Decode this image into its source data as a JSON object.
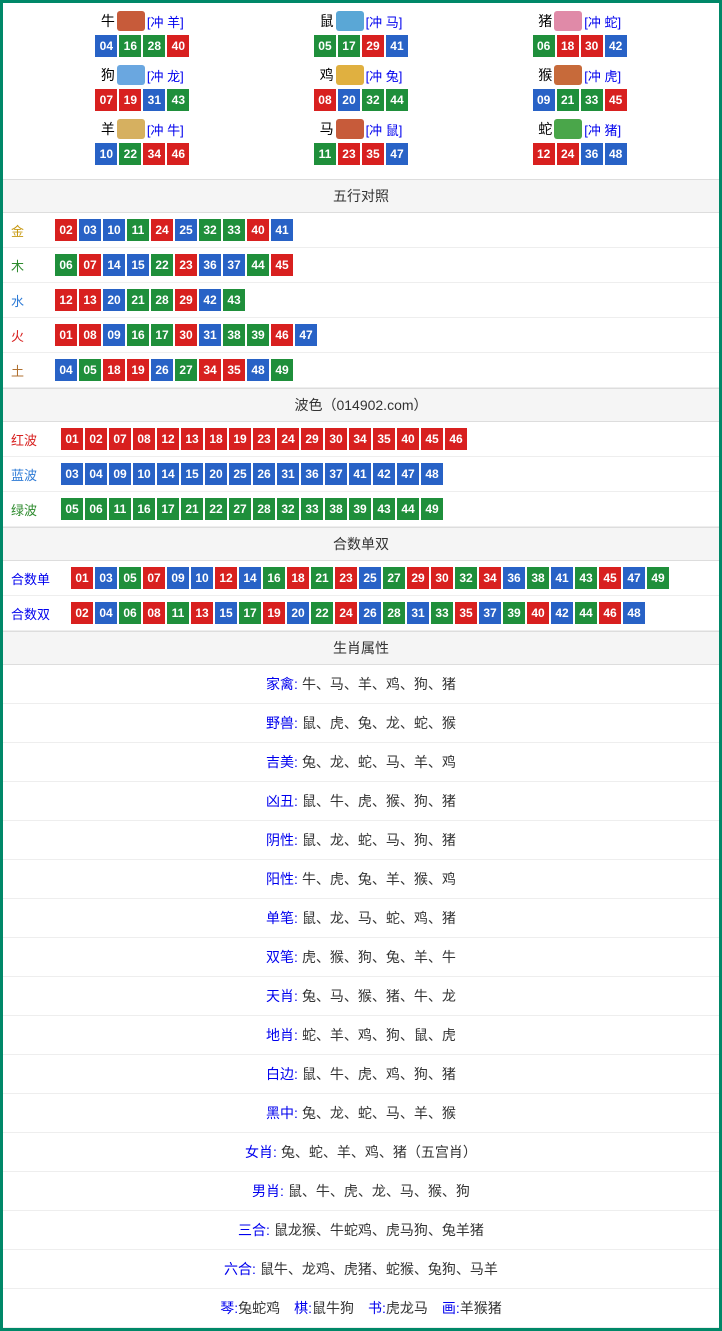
{
  "colors": {
    "frame": "#008868",
    "ball_red": "#d8201f",
    "ball_blue": "#2862c6",
    "ball_green": "#1f8f3b",
    "header_bg": "#f5f5f5",
    "border": "#dddddd",
    "row_border": "#eeeeee",
    "link": "#0000ee",
    "label_gold": "#c79810",
    "label_green": "#2e8b2e",
    "label_blue": "#2e7bd6",
    "label_red": "#d8201f",
    "label_brown": "#b07030"
  },
  "zodiac_icon_colors": {
    "牛": "#c75b3a",
    "鼠": "#5aa7d6",
    "猪": "#e08aa8",
    "狗": "#6aa7e0",
    "鸡": "#e0b040",
    "猴": "#c76a3a",
    "羊": "#d6b060",
    "马": "#c75b3a",
    "蛇": "#4aa64a"
  },
  "zodiac": [
    {
      "name": "牛",
      "clash": "[冲 羊]",
      "balls": [
        [
          "04",
          "b"
        ],
        [
          "16",
          "g"
        ],
        [
          "28",
          "g"
        ],
        [
          "40",
          "r"
        ]
      ]
    },
    {
      "name": "鼠",
      "clash": "[冲 马]",
      "balls": [
        [
          "05",
          "g"
        ],
        [
          "17",
          "g"
        ],
        [
          "29",
          "r"
        ],
        [
          "41",
          "b"
        ]
      ]
    },
    {
      "name": "猪",
      "clash": "[冲 蛇]",
      "balls": [
        [
          "06",
          "g"
        ],
        [
          "18",
          "r"
        ],
        [
          "30",
          "r"
        ],
        [
          "42",
          "b"
        ]
      ]
    },
    {
      "name": "狗",
      "clash": "[冲 龙]",
      "balls": [
        [
          "07",
          "r"
        ],
        [
          "19",
          "r"
        ],
        [
          "31",
          "b"
        ],
        [
          "43",
          "g"
        ]
      ]
    },
    {
      "name": "鸡",
      "clash": "[冲 兔]",
      "balls": [
        [
          "08",
          "r"
        ],
        [
          "20",
          "b"
        ],
        [
          "32",
          "g"
        ],
        [
          "44",
          "g"
        ]
      ]
    },
    {
      "name": "猴",
      "clash": "[冲 虎]",
      "balls": [
        [
          "09",
          "b"
        ],
        [
          "21",
          "g"
        ],
        [
          "33",
          "g"
        ],
        [
          "45",
          "r"
        ]
      ]
    },
    {
      "name": "羊",
      "clash": "[冲 牛]",
      "balls": [
        [
          "10",
          "b"
        ],
        [
          "22",
          "g"
        ],
        [
          "34",
          "r"
        ],
        [
          "46",
          "r"
        ]
      ]
    },
    {
      "name": "马",
      "clash": "[冲 鼠]",
      "balls": [
        [
          "11",
          "g"
        ],
        [
          "23",
          "r"
        ],
        [
          "35",
          "r"
        ],
        [
          "47",
          "b"
        ]
      ]
    },
    {
      "name": "蛇",
      "clash": "[冲 猪]",
      "balls": [
        [
          "12",
          "r"
        ],
        [
          "24",
          "r"
        ],
        [
          "36",
          "b"
        ],
        [
          "48",
          "b"
        ]
      ]
    }
  ],
  "five_elements": {
    "title": "五行对照",
    "rows": [
      {
        "label": "金",
        "label_color": "#c79810",
        "balls": [
          [
            "02",
            "r"
          ],
          [
            "03",
            "b"
          ],
          [
            "10",
            "b"
          ],
          [
            "11",
            "g"
          ],
          [
            "24",
            "r"
          ],
          [
            "25",
            "b"
          ],
          [
            "32",
            "g"
          ],
          [
            "33",
            "g"
          ],
          [
            "40",
            "r"
          ],
          [
            "41",
            "b"
          ]
        ]
      },
      {
        "label": "木",
        "label_color": "#2e8b2e",
        "balls": [
          [
            "06",
            "g"
          ],
          [
            "07",
            "r"
          ],
          [
            "14",
            "b"
          ],
          [
            "15",
            "b"
          ],
          [
            "22",
            "g"
          ],
          [
            "23",
            "r"
          ],
          [
            "36",
            "b"
          ],
          [
            "37",
            "b"
          ],
          [
            "44",
            "g"
          ],
          [
            "45",
            "r"
          ]
        ]
      },
      {
        "label": "水",
        "label_color": "#2e7bd6",
        "balls": [
          [
            "12",
            "r"
          ],
          [
            "13",
            "r"
          ],
          [
            "20",
            "b"
          ],
          [
            "21",
            "g"
          ],
          [
            "28",
            "g"
          ],
          [
            "29",
            "r"
          ],
          [
            "42",
            "b"
          ],
          [
            "43",
            "g"
          ]
        ]
      },
      {
        "label": "火",
        "label_color": "#d8201f",
        "balls": [
          [
            "01",
            "r"
          ],
          [
            "08",
            "r"
          ],
          [
            "09",
            "b"
          ],
          [
            "16",
            "g"
          ],
          [
            "17",
            "g"
          ],
          [
            "30",
            "r"
          ],
          [
            "31",
            "b"
          ],
          [
            "38",
            "g"
          ],
          [
            "39",
            "g"
          ],
          [
            "46",
            "r"
          ],
          [
            "47",
            "b"
          ]
        ]
      },
      {
        "label": "土",
        "label_color": "#b07030",
        "balls": [
          [
            "04",
            "b"
          ],
          [
            "05",
            "g"
          ],
          [
            "18",
            "r"
          ],
          [
            "19",
            "r"
          ],
          [
            "26",
            "b"
          ],
          [
            "27",
            "g"
          ],
          [
            "34",
            "r"
          ],
          [
            "35",
            "r"
          ],
          [
            "48",
            "b"
          ],
          [
            "49",
            "g"
          ]
        ]
      }
    ]
  },
  "wave": {
    "title": "波色（014902.com）",
    "rows": [
      {
        "label": "红波",
        "label_color": "#d8201f",
        "balls": [
          [
            "01",
            "r"
          ],
          [
            "02",
            "r"
          ],
          [
            "07",
            "r"
          ],
          [
            "08",
            "r"
          ],
          [
            "12",
            "r"
          ],
          [
            "13",
            "r"
          ],
          [
            "18",
            "r"
          ],
          [
            "19",
            "r"
          ],
          [
            "23",
            "r"
          ],
          [
            "24",
            "r"
          ],
          [
            "29",
            "r"
          ],
          [
            "30",
            "r"
          ],
          [
            "34",
            "r"
          ],
          [
            "35",
            "r"
          ],
          [
            "40",
            "r"
          ],
          [
            "45",
            "r"
          ],
          [
            "46",
            "r"
          ]
        ]
      },
      {
        "label": "蓝波",
        "label_color": "#2e7bd6",
        "balls": [
          [
            "03",
            "b"
          ],
          [
            "04",
            "b"
          ],
          [
            "09",
            "b"
          ],
          [
            "10",
            "b"
          ],
          [
            "14",
            "b"
          ],
          [
            "15",
            "b"
          ],
          [
            "20",
            "b"
          ],
          [
            "25",
            "b"
          ],
          [
            "26",
            "b"
          ],
          [
            "31",
            "b"
          ],
          [
            "36",
            "b"
          ],
          [
            "37",
            "b"
          ],
          [
            "41",
            "b"
          ],
          [
            "42",
            "b"
          ],
          [
            "47",
            "b"
          ],
          [
            "48",
            "b"
          ]
        ]
      },
      {
        "label": "绿波",
        "label_color": "#2e8b2e",
        "balls": [
          [
            "05",
            "g"
          ],
          [
            "06",
            "g"
          ],
          [
            "11",
            "g"
          ],
          [
            "16",
            "g"
          ],
          [
            "17",
            "g"
          ],
          [
            "21",
            "g"
          ],
          [
            "22",
            "g"
          ],
          [
            "27",
            "g"
          ],
          [
            "28",
            "g"
          ],
          [
            "32",
            "g"
          ],
          [
            "33",
            "g"
          ],
          [
            "38",
            "g"
          ],
          [
            "39",
            "g"
          ],
          [
            "43",
            "g"
          ],
          [
            "44",
            "g"
          ],
          [
            "49",
            "g"
          ]
        ]
      }
    ]
  },
  "sum_parity": {
    "title": "合数单双",
    "rows": [
      {
        "label": "合数单",
        "label_color": "#0000ee",
        "balls": [
          [
            "01",
            "r"
          ],
          [
            "03",
            "b"
          ],
          [
            "05",
            "g"
          ],
          [
            "07",
            "r"
          ],
          [
            "09",
            "b"
          ],
          [
            "10",
            "b"
          ],
          [
            "12",
            "r"
          ],
          [
            "14",
            "b"
          ],
          [
            "16",
            "g"
          ],
          [
            "18",
            "r"
          ],
          [
            "21",
            "g"
          ],
          [
            "23",
            "r"
          ],
          [
            "25",
            "b"
          ],
          [
            "27",
            "g"
          ],
          [
            "29",
            "r"
          ],
          [
            "30",
            "r"
          ],
          [
            "32",
            "g"
          ],
          [
            "34",
            "r"
          ],
          [
            "36",
            "b"
          ],
          [
            "38",
            "g"
          ],
          [
            "41",
            "b"
          ],
          [
            "43",
            "g"
          ],
          [
            "45",
            "r"
          ],
          [
            "47",
            "b"
          ],
          [
            "49",
            "g"
          ]
        ]
      },
      {
        "label": "合数双",
        "label_color": "#0000ee",
        "balls": [
          [
            "02",
            "r"
          ],
          [
            "04",
            "b"
          ],
          [
            "06",
            "g"
          ],
          [
            "08",
            "r"
          ],
          [
            "11",
            "g"
          ],
          [
            "13",
            "r"
          ],
          [
            "15",
            "b"
          ],
          [
            "17",
            "g"
          ],
          [
            "19",
            "r"
          ],
          [
            "20",
            "b"
          ],
          [
            "22",
            "g"
          ],
          [
            "24",
            "r"
          ],
          [
            "26",
            "b"
          ],
          [
            "28",
            "g"
          ],
          [
            "31",
            "b"
          ],
          [
            "33",
            "g"
          ],
          [
            "35",
            "r"
          ],
          [
            "37",
            "b"
          ],
          [
            "39",
            "g"
          ],
          [
            "40",
            "r"
          ],
          [
            "42",
            "b"
          ],
          [
            "44",
            "g"
          ],
          [
            "46",
            "r"
          ],
          [
            "48",
            "b"
          ]
        ]
      }
    ]
  },
  "attributes": {
    "title": "生肖属性",
    "rows": [
      {
        "key": "家禽:",
        "val": "牛、马、羊、鸡、狗、猪"
      },
      {
        "key": "野兽:",
        "val": "鼠、虎、兔、龙、蛇、猴"
      },
      {
        "key": "吉美:",
        "val": "兔、龙、蛇、马、羊、鸡"
      },
      {
        "key": "凶丑:",
        "val": "鼠、牛、虎、猴、狗、猪"
      },
      {
        "key": "阴性:",
        "val": "鼠、龙、蛇、马、狗、猪"
      },
      {
        "key": "阳性:",
        "val": "牛、虎、兔、羊、猴、鸡"
      },
      {
        "key": "单笔:",
        "val": "鼠、龙、马、蛇、鸡、猪"
      },
      {
        "key": "双笔:",
        "val": "虎、猴、狗、兔、羊、牛"
      },
      {
        "key": "天肖:",
        "val": "兔、马、猴、猪、牛、龙"
      },
      {
        "key": "地肖:",
        "val": "蛇、羊、鸡、狗、鼠、虎"
      },
      {
        "key": "白边:",
        "val": "鼠、牛、虎、鸡、狗、猪"
      },
      {
        "key": "黑中:",
        "val": "兔、龙、蛇、马、羊、猴"
      },
      {
        "key": "女肖:",
        "val": "兔、蛇、羊、鸡、猪（五宫肖）"
      },
      {
        "key": "男肖:",
        "val": "鼠、牛、虎、龙、马、猴、狗"
      },
      {
        "key": "三合:",
        "val": "鼠龙猴、牛蛇鸡、虎马狗、兔羊猪"
      },
      {
        "key": "六合:",
        "val": "鼠牛、龙鸡、虎猪、蛇猴、兔狗、马羊"
      }
    ],
    "footer": [
      {
        "key": "琴:",
        "val": "兔蛇鸡"
      },
      {
        "key": "棋:",
        "val": "鼠牛狗"
      },
      {
        "key": "书:",
        "val": "虎龙马"
      },
      {
        "key": "画:",
        "val": "羊猴猪"
      }
    ]
  }
}
